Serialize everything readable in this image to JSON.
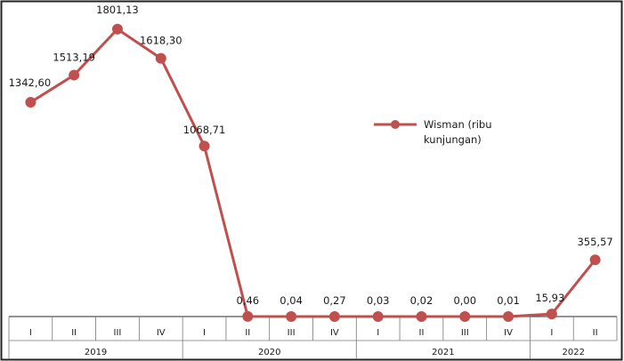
{
  "chart_data": {
    "type": "line",
    "title": "",
    "xlabel": "",
    "ylabel": "",
    "legend_position": "right",
    "grid": false,
    "categories": [
      "I",
      "II",
      "III",
      "IV",
      "I",
      "II",
      "III",
      "IV",
      "I",
      "II",
      "III",
      "IV",
      "I",
      "II"
    ],
    "years": [
      {
        "label": "2019",
        "span": 4
      },
      {
        "label": "2020",
        "span": 4
      },
      {
        "label": "2021",
        "span": 4
      },
      {
        "label": "2022",
        "span": 2
      }
    ],
    "series": [
      {
        "name": "Wisman (ribu kunjungan)",
        "legend_lines": [
          "Wisman (ribu",
          "kunjungan)"
        ],
        "color": "#c0504d",
        "values": [
          1342.6,
          1513.19,
          1801.13,
          1618.3,
          1068.71,
          0.46,
          0.04,
          0.27,
          0.03,
          0.02,
          0.0,
          0.01,
          15.93,
          355.57
        ],
        "labels": [
          "1342,60",
          "1513,19",
          "1801,13",
          "1618,30",
          "1068,71",
          "0,46",
          "0,04",
          "0,27",
          "0,03",
          "0,02",
          "0,00",
          "0,01",
          "15,93",
          "355,57"
        ]
      }
    ],
    "ylim": [
      0,
      1850
    ]
  }
}
